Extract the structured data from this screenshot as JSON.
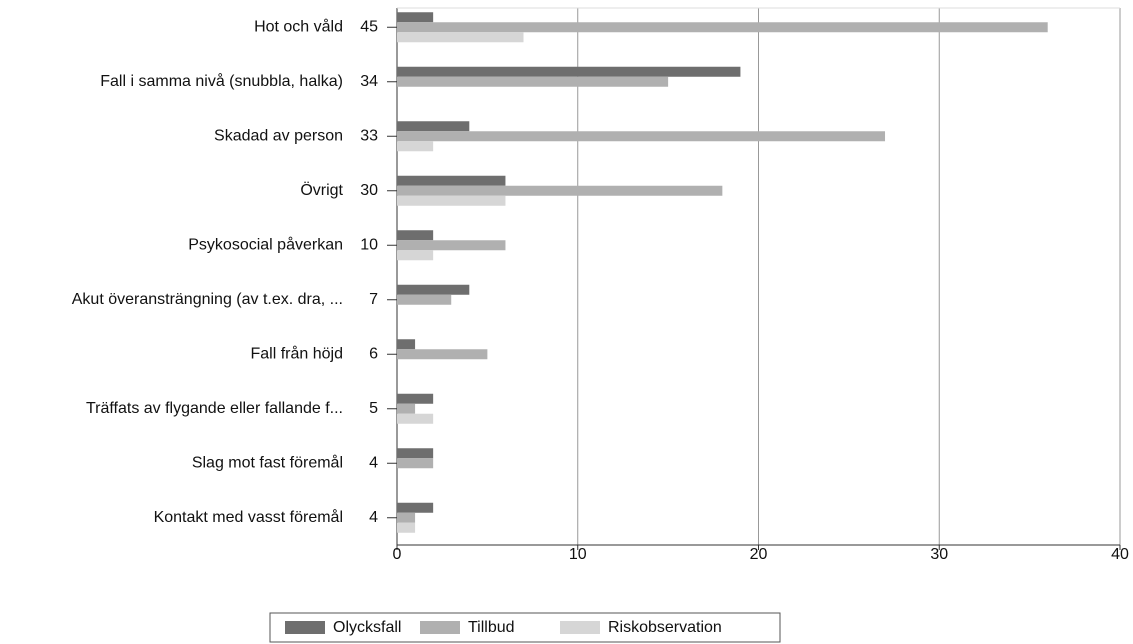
{
  "chart_data": {
    "type": "bar",
    "orientation": "horizontal",
    "categories": [
      "Hot och våld",
      "Fall i samma nivå (snubbla, halka)",
      "Skadad av person",
      "Övrigt",
      "Psykosocial påverkan",
      "Akut överansträngning (av t.ex. dra, ...",
      "Fall från höjd",
      "Träffats av flygande eller fallande f...",
      "Slag mot fast föremål",
      "Kontakt med vasst föremål"
    ],
    "totals": [
      45,
      34,
      33,
      30,
      10,
      7,
      6,
      5,
      4,
      4
    ],
    "series": [
      {
        "name": "Olycksfall",
        "color": "#6e6e6e",
        "values": [
          2,
          19,
          4,
          6,
          2,
          4,
          1,
          2,
          2,
          2
        ]
      },
      {
        "name": "Tillbud",
        "color": "#b0b0b0",
        "values": [
          36,
          15,
          27,
          18,
          6,
          3,
          5,
          1,
          2,
          1
        ]
      },
      {
        "name": "Riskobservation",
        "color": "#d6d6d6",
        "values": [
          7,
          0,
          2,
          6,
          2,
          0,
          0,
          2,
          0,
          1
        ]
      }
    ],
    "xlim": [
      0,
      40
    ],
    "xticks": [
      0,
      10,
      20,
      30,
      40
    ],
    "grid": true,
    "legend": "bottom"
  }
}
